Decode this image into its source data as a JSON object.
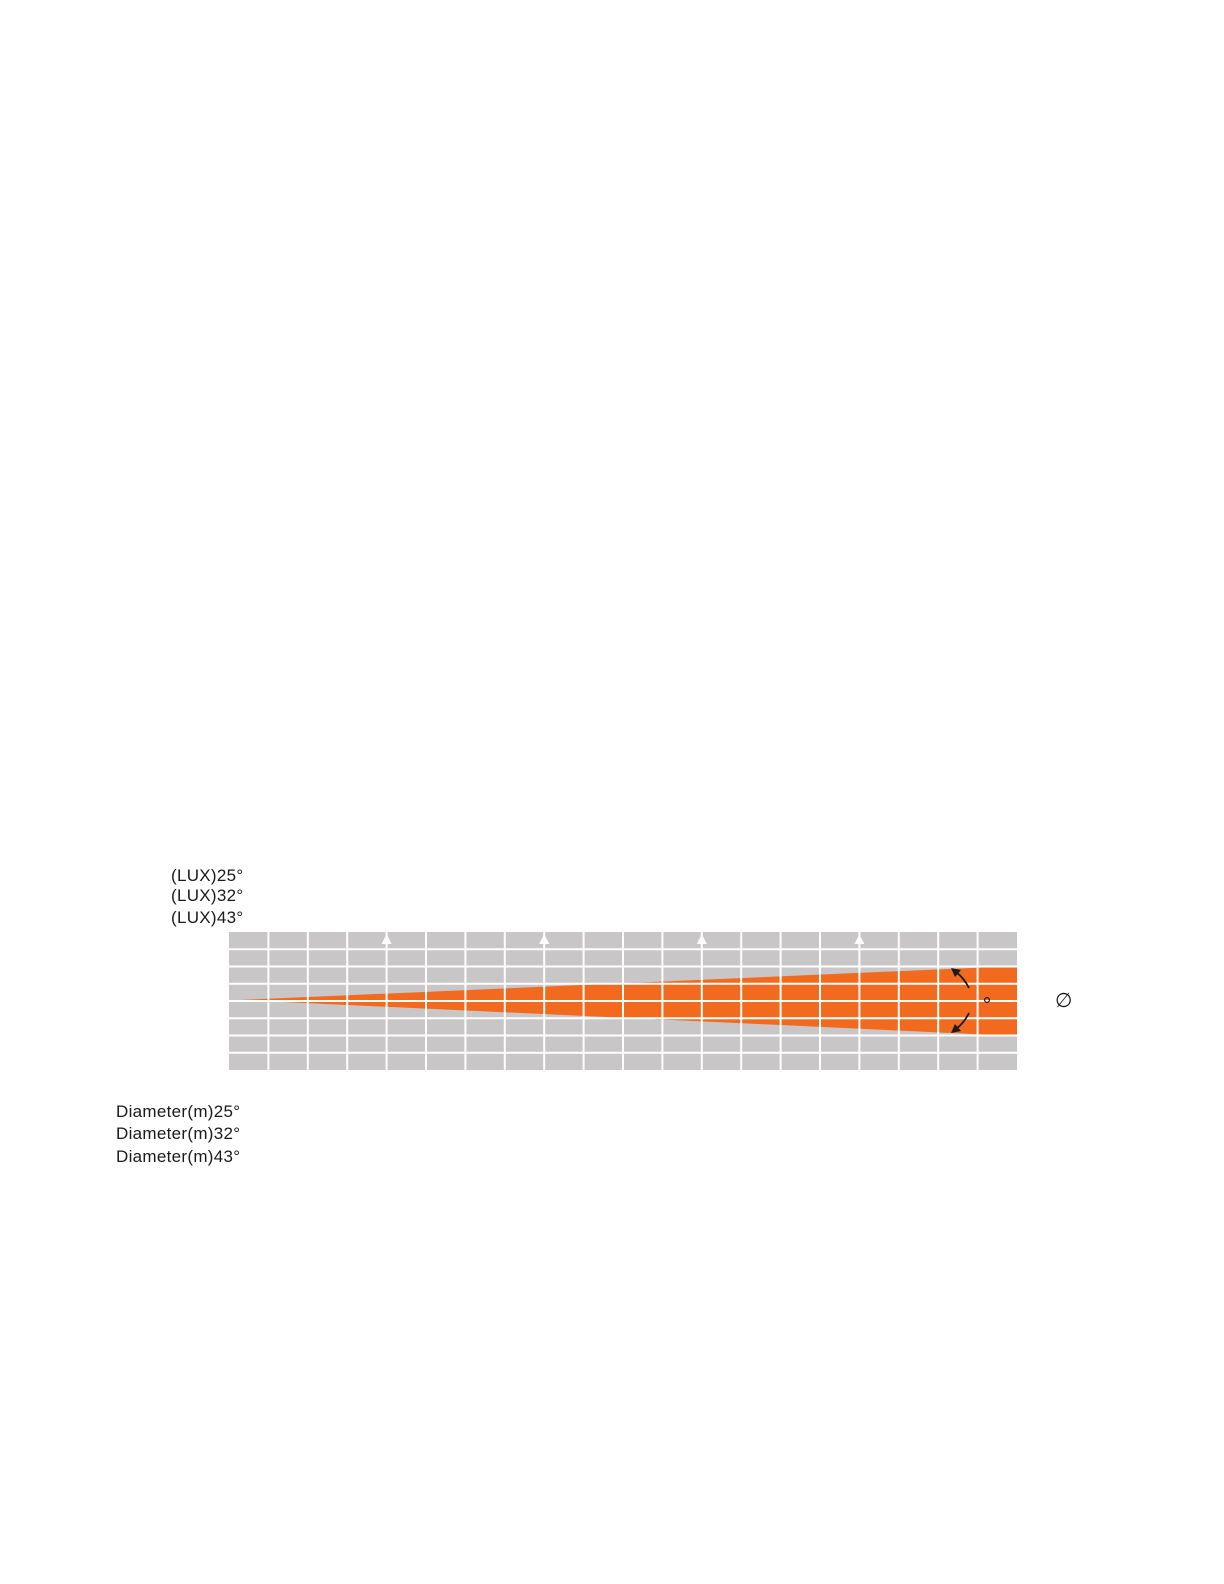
{
  "lux_labels": [
    "(LUX)25°",
    "(LUX)32°",
    "(LUX)43°"
  ],
  "diameter_labels": [
    "Diameter(m)25°",
    "Diameter(m)32°",
    "Diameter(m)43°"
  ],
  "diameter_symbol": "∅",
  "colors": {
    "grid": "#c8c6c6",
    "beam": "#f26a1d",
    "gridline": "#ffffff",
    "arrow": "#1a1a1a"
  }
}
